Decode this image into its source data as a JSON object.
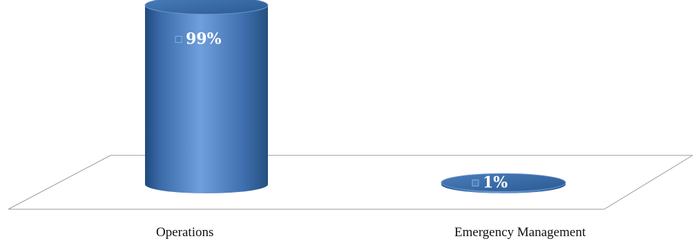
{
  "chart_data": {
    "type": "bar",
    "style": "3d-cylinder",
    "categories": [
      "Operations",
      "Emergency Management"
    ],
    "values": [
      99,
      1
    ],
    "data_labels": [
      "99%",
      "1%"
    ],
    "ylim": [
      0,
      100
    ],
    "grid": false,
    "legend": "none",
    "colors": {
      "cylinder": "#4a7ebb",
      "cylinder_dark": "#1f497d",
      "cylinder_light": "#6f9fdc",
      "floor_line": "#9a9a9a"
    }
  }
}
